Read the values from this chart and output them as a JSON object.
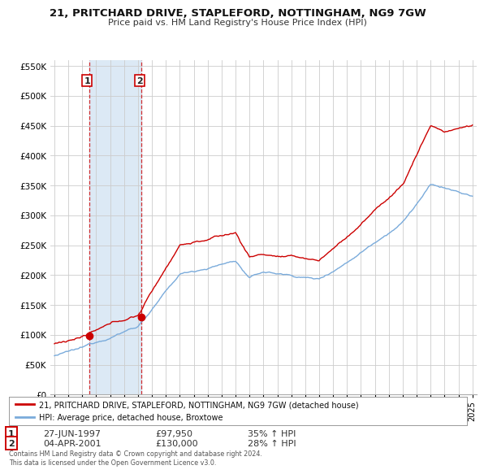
{
  "title1": "21, PRITCHARD DRIVE, STAPLEFORD, NOTTINGHAM, NG9 7GW",
  "title2": "Price paid vs. HM Land Registry's House Price Index (HPI)",
  "legend_house": "21, PRITCHARD DRIVE, STAPLEFORD, NOTTINGHAM, NG9 7GW (detached house)",
  "legend_hpi": "HPI: Average price, detached house, Broxtowe",
  "annotation1_date": "27-JUN-1997",
  "annotation1_price": "£97,950",
  "annotation1_hpi": "35% ↑ HPI",
  "annotation2_date": "04-APR-2001",
  "annotation2_price": "£130,000",
  "annotation2_hpi": "28% ↑ HPI",
  "footer": "Contains HM Land Registry data © Crown copyright and database right 2024.\nThis data is licensed under the Open Government Licence v3.0.",
  "house_color": "#cc0000",
  "hpi_color": "#7aabdb",
  "shade_color": "#dce9f5",
  "background_color": "#ffffff",
  "grid_color": "#cccccc",
  "ylim": [
    0,
    560000
  ],
  "yticks": [
    0,
    50000,
    100000,
    150000,
    200000,
    250000,
    300000,
    350000,
    400000,
    450000,
    500000,
    550000
  ],
  "sale1_x": 1997.49,
  "sale1_y": 97950,
  "sale2_x": 2001.26,
  "sale2_y": 130000,
  "xlim_left": 1994.7,
  "xlim_right": 2025.3
}
